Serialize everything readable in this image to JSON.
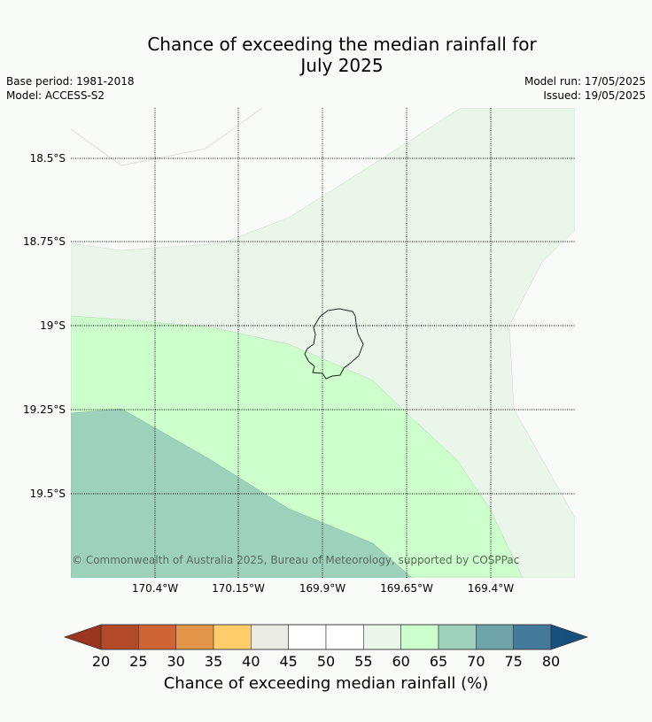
{
  "title_line1": "Chance of exceeding the median rainfall for",
  "title_line2": "July 2025",
  "base_period": "Base period: 1981-2018",
  "model": "Model: ACCESS-S2",
  "model_run": "Model run: 17/05/2025",
  "issued": "Issued: 19/05/2025",
  "lat_labels": [
    "18.5°S",
    "18.75°S",
    "19°S",
    "19.25°S",
    "19.5°S"
  ],
  "lon_labels": [
    "170.4°W",
    "170.15°W",
    "169.9°W",
    "169.65°W",
    "169.4°W"
  ],
  "copyright": "© Commonwealth of Australia 2025, Bureau of Meteorology, supported by COSPPac",
  "colorbar": {
    "title": "Chance of exceeding median rainfall (%)",
    "ticks": [
      "20",
      "25",
      "30",
      "35",
      "40",
      "45",
      "50",
      "55",
      "60",
      "65",
      "70",
      "75",
      "80"
    ],
    "colors": [
      "#b34a27",
      "#cf6534",
      "#e3964a",
      "#fecd6a",
      "#ebebe6",
      "#ffffff",
      "#ffffff",
      "#eaf6ea",
      "#ccffcc",
      "#9dd1bc",
      "#6ea3a8",
      "#43799a"
    ],
    "under_color": "#9c3520",
    "over_color": "#16507f"
  },
  "colors": {
    "background": "#f9fbf9",
    "band_50_55": "#f9fbf9",
    "band_55_60": "#eaf6ea",
    "band_60_65": "#ccffcc",
    "band_65_70": "#9dd1bc"
  }
}
